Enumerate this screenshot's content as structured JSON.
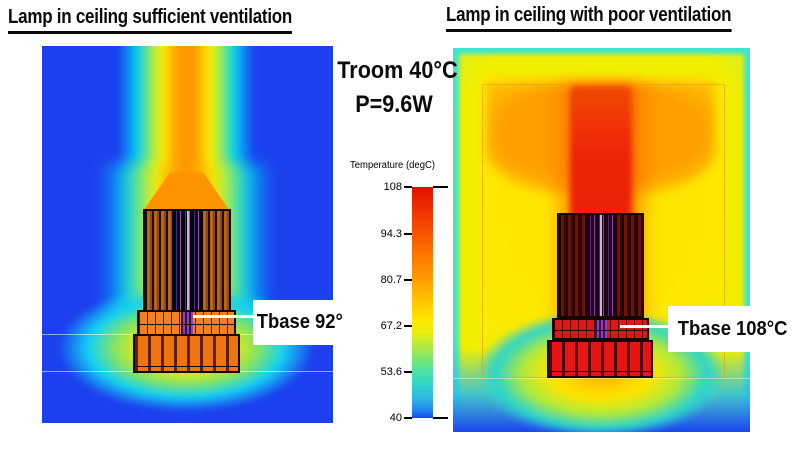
{
  "titles": {
    "left": "Lamp in ceiling sufficient ventilation",
    "right": "Lamp in ceiling with poor ventilation"
  },
  "conditions": {
    "room_temp": "Troom 40°C",
    "power": "P=9.6W"
  },
  "legend": {
    "title": "Temperature (degC)",
    "min": 40,
    "max": 108,
    "ticks": [
      "108",
      "94.3",
      "80.7",
      "67.2",
      "53.6",
      "40"
    ]
  },
  "annotations": {
    "left": "Tbase 92°",
    "right": "Tbase 108°C"
  },
  "colors": {
    "ambient_blue": "#1c40ee",
    "plume_orange": "#ff9400",
    "hot_red": "#e82008",
    "ambient_cyan": "#3fe5cd",
    "enclosure_yellow": "#f4ef00"
  },
  "chart_data": [
    {
      "type": "heatmap",
      "title": "Lamp in ceiling sufficient ventilation",
      "quantity": "Temperature (degC)",
      "scale_ticks": [
        108,
        94.3,
        80.7,
        67.2,
        53.6,
        40
      ],
      "scale_range": [
        40,
        108
      ],
      "palette": "rainbow-jet (blue=40degC, red=108degC)",
      "room_temperature_degC": 40,
      "lamp_power_W": 9.6,
      "base_temperature_degC": 92,
      "annotation": "Tbase 92°",
      "legend_position": "center, shared between panels",
      "description": "Cool blue ambient (~40degC) with a narrow orange buoyant plume rising from the lamp heatsink through the ceiling opening"
    },
    {
      "type": "heatmap",
      "title": "Lamp in ceiling with poor ventilation",
      "quantity": "Temperature (degC)",
      "scale_ticks": [
        108,
        94.3,
        80.7,
        67.2,
        53.6,
        40
      ],
      "scale_range": [
        40,
        108
      ],
      "palette": "rainbow-jet (blue=40degC, red=108degC)",
      "room_temperature_degC": 40,
      "lamp_power_W": 9.6,
      "base_temperature_degC": 108,
      "annotation": "Tbase 108°C",
      "legend_position": "center, shared between panels",
      "description": "Sealed enclosure filled with hot yellow/orange air (~70-95degC) and a red mushroom-shaped plume (~108degC) trapped above the lamp"
    }
  ]
}
